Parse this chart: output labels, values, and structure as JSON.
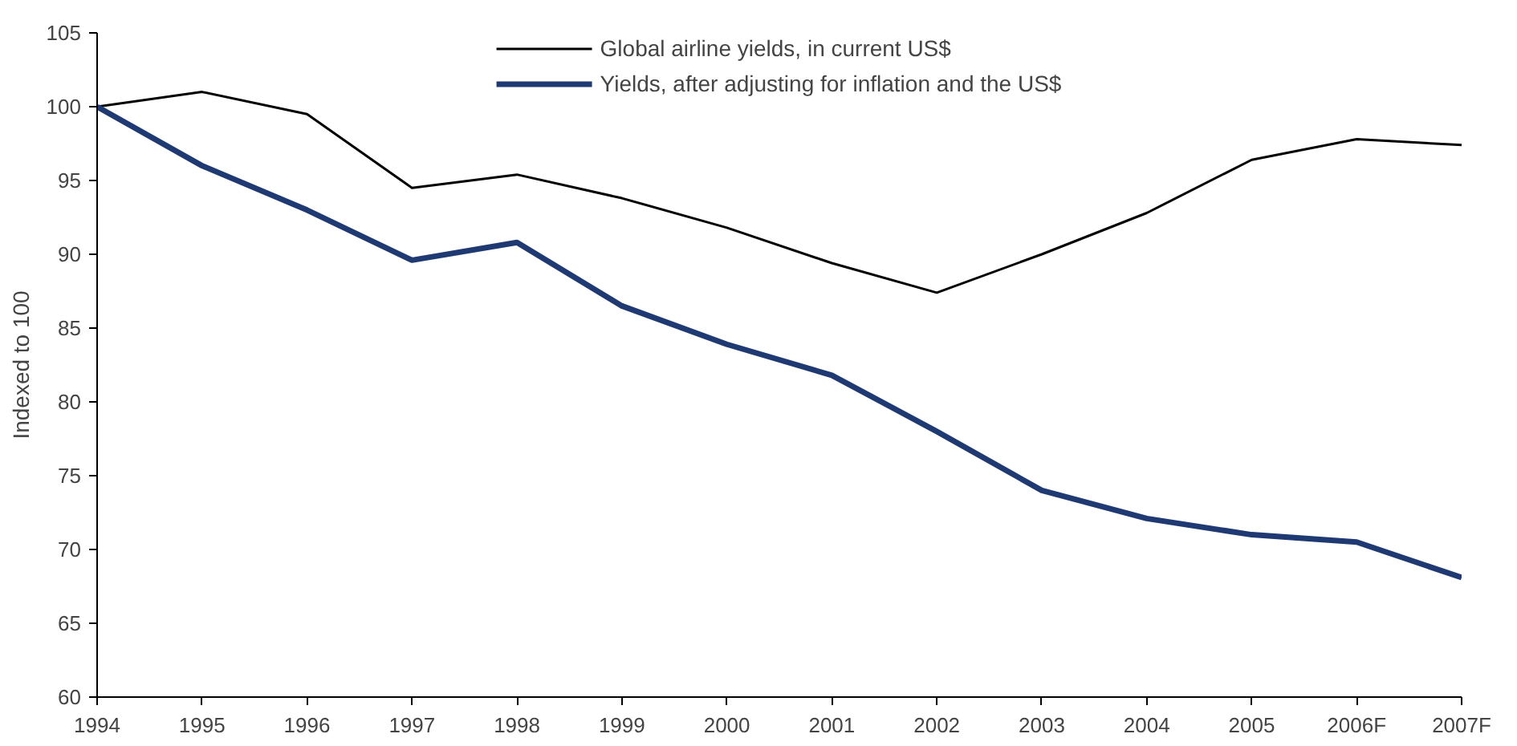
{
  "chart_data": {
    "type": "line",
    "ylabel": "Indexed to 100",
    "categories": [
      "1994",
      "1995",
      "1996",
      "1997",
      "1998",
      "1999",
      "2000",
      "2001",
      "2002",
      "2003",
      "2004",
      "2005",
      "2006F",
      "2007F"
    ],
    "series": [
      {
        "name": "Global airline yields, in current US$",
        "color": "#000000",
        "values": [
          100,
          101,
          99.5,
          94.5,
          95.4,
          93.8,
          91.8,
          89.4,
          87.4,
          90,
          92.8,
          96.4,
          97.8,
          97.4
        ]
      },
      {
        "name": "Yields, after adjusting for inflation and the US$",
        "color": "#1f3a73",
        "values": [
          100,
          96,
          93,
          89.6,
          90.8,
          86.5,
          83.9,
          81.8,
          78,
          74,
          72.1,
          71,
          70.5,
          68.1
        ]
      }
    ],
    "ylim": [
      60,
      105
    ],
    "yticks": [
      60,
      65,
      70,
      75,
      80,
      85,
      90,
      95,
      100,
      105
    ],
    "grid": false,
    "legend": "top",
    "line_style": "solid",
    "marker": "none"
  }
}
